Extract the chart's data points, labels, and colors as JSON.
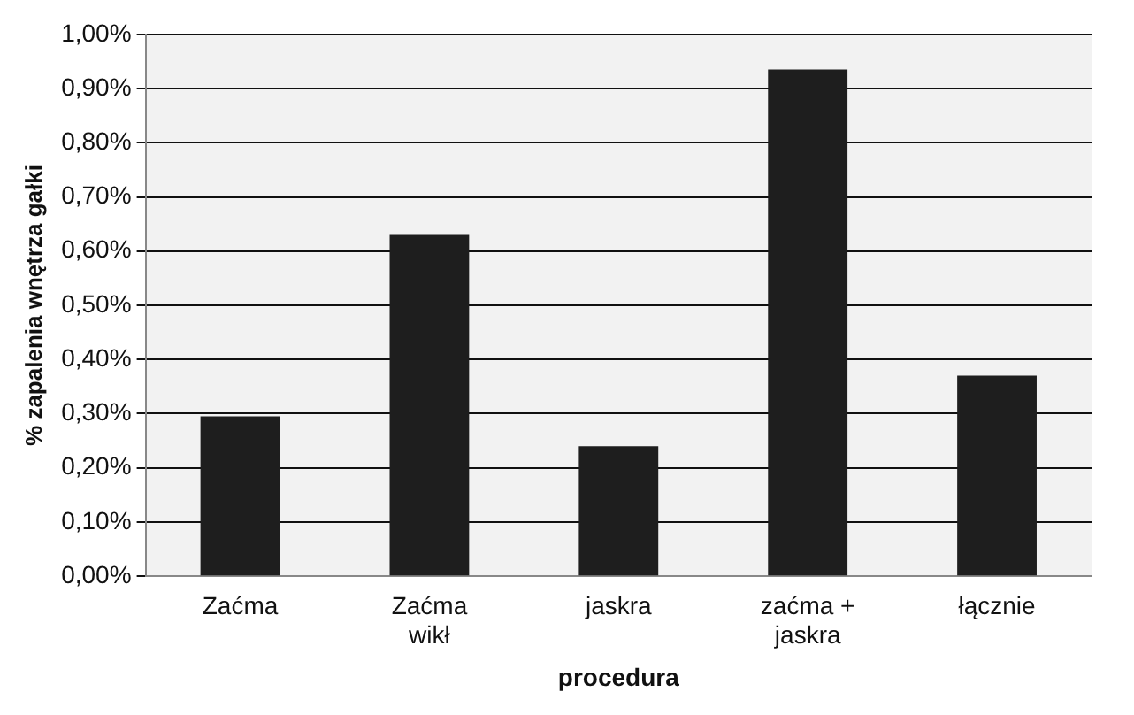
{
  "chart_data": {
    "type": "bar",
    "xlabel": "procedura",
    "ylabel": "% zapalenia wnętrza gałki",
    "categories": [
      "Zaćma",
      "Zaćma\nwikł",
      "jaskra",
      "zaćma +\njaskra",
      "łącznie"
    ],
    "values": [
      0.295,
      0.63,
      0.24,
      0.935,
      0.37
    ],
    "color": "#1e1e1e",
    "ylim": [
      0,
      1
    ],
    "yticks": [
      {
        "value": 0,
        "label": "0,00%"
      },
      {
        "value": 0.1,
        "label": "0,10%"
      },
      {
        "value": 0.2,
        "label": "0,20%"
      },
      {
        "value": 0.3,
        "label": "0,30%"
      },
      {
        "value": 0.4,
        "label": "0,40%"
      },
      {
        "value": 0.5,
        "label": "0,50%"
      },
      {
        "value": 0.6,
        "label": "0,60%"
      },
      {
        "value": 0.7,
        "label": "0,70%"
      },
      {
        "value": 0.8,
        "label": "0,80%"
      },
      {
        "value": 0.9,
        "label": "0,90%"
      },
      {
        "value": 1,
        "label": "1,00%"
      }
    ],
    "grid": "y",
    "legend": false
  }
}
